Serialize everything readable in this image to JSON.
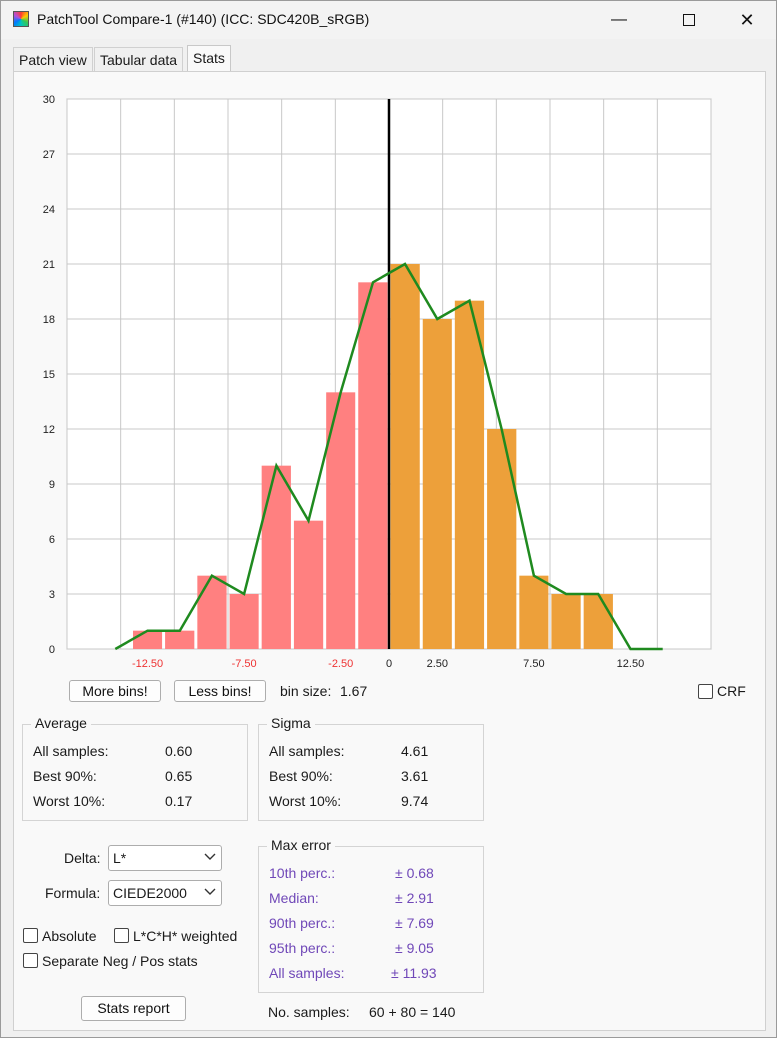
{
  "window": {
    "title": "PatchTool Compare-1 (#140) (ICC: SDC420B_sRGB)",
    "minimize_glyph": "—",
    "close_glyph": "✕"
  },
  "tabs": [
    {
      "label": "Patch view",
      "active": false
    },
    {
      "label": "Tabular data",
      "active": false
    },
    {
      "label": "Stats",
      "active": true
    }
  ],
  "chart_data": {
    "type": "bar",
    "x_tick_labels": [
      {
        "label": "-12.50",
        "x": -12.5,
        "color": "#ee3333"
      },
      {
        "label": "-7.50",
        "x": -7.5,
        "color": "#ee3333"
      },
      {
        "label": "-2.50",
        "x": -2.5,
        "color": "#ee3333"
      },
      {
        "label": "0",
        "x": 0,
        "color": "#222222"
      },
      {
        "label": "2.50",
        "x": 2.5,
        "color": "#222222"
      },
      {
        "label": "7.50",
        "x": 7.5,
        "color": "#222222"
      },
      {
        "label": "12.50",
        "x": 12.5,
        "color": "#222222"
      }
    ],
    "y_ticks": [
      0,
      3,
      6,
      9,
      12,
      15,
      18,
      21,
      24,
      27,
      30
    ],
    "xlim": [
      -16.67,
      16.67
    ],
    "ylim": [
      0,
      30
    ],
    "grid": true,
    "bin_size": 1.67,
    "negative_bars": [
      {
        "x0": -15.0,
        "x1": -13.33,
        "value": 0
      },
      {
        "x0": -13.33,
        "x1": -11.67,
        "value": 1
      },
      {
        "x0": -11.67,
        "x1": -10.0,
        "value": 1
      },
      {
        "x0": -10.0,
        "x1": -8.33,
        "value": 4
      },
      {
        "x0": -8.33,
        "x1": -6.67,
        "value": 3
      },
      {
        "x0": -6.67,
        "x1": -5.0,
        "value": 10
      },
      {
        "x0": -5.0,
        "x1": -3.33,
        "value": 7
      },
      {
        "x0": -3.33,
        "x1": -1.67,
        "value": 14
      },
      {
        "x0": -1.67,
        "x1": 0.0,
        "value": 20
      }
    ],
    "positive_bars": [
      {
        "x0": 0.0,
        "x1": 1.67,
        "value": 21
      },
      {
        "x0": 1.67,
        "x1": 3.33,
        "value": 18
      },
      {
        "x0": 3.33,
        "x1": 5.0,
        "value": 19
      },
      {
        "x0": 5.0,
        "x1": 6.67,
        "value": 12
      },
      {
        "x0": 6.67,
        "x1": 8.33,
        "value": 4
      },
      {
        "x0": 8.33,
        "x1": 10.0,
        "value": 3
      },
      {
        "x0": 10.0,
        "x1": 11.67,
        "value": 3
      },
      {
        "x0": 11.67,
        "x1": 13.33,
        "value": 0
      },
      {
        "x0": 13.33,
        "x1": 15.0,
        "value": 0
      }
    ],
    "line": {
      "x": [
        -14.17,
        -12.5,
        -10.83,
        -9.17,
        -7.5,
        -5.83,
        -4.17,
        -2.5,
        -0.83,
        0.83,
        2.5,
        4.17,
        5.83,
        7.5,
        9.17,
        10.83,
        12.5,
        14.17
      ],
      "y": [
        0,
        1,
        1,
        4,
        3,
        10,
        7,
        14,
        20,
        21,
        18,
        19,
        12,
        4,
        3,
        3,
        0,
        0
      ]
    },
    "colors": {
      "negative": "#ff8080",
      "positive": "#eda03a",
      "line": "#1f8a1f",
      "zero_line": "#000000",
      "grid": "#c8c8c8"
    }
  },
  "controls": {
    "more_bins_label": "More bins!",
    "less_bins_label": "Less bins!",
    "bin_size_label": "bin size:",
    "bin_size_value": "1.67",
    "crf_label": "CRF",
    "crf_checked": false
  },
  "average": {
    "title": "Average",
    "rows": [
      {
        "label": "All samples:",
        "value": "0.60"
      },
      {
        "label": "Best 90%:",
        "value": "0.65"
      },
      {
        "label": "Worst 10%:",
        "value": "0.17"
      }
    ]
  },
  "sigma": {
    "title": "Sigma",
    "rows": [
      {
        "label": "All samples:",
        "value": "4.61"
      },
      {
        "label": "Best 90%:",
        "value": "3.61"
      },
      {
        "label": "Worst 10%:",
        "value": "9.74"
      }
    ]
  },
  "settings": {
    "delta_label": "Delta:",
    "delta_value": "L*",
    "formula_label": "Formula:",
    "formula_value": "CIEDE2000",
    "absolute_label": "Absolute",
    "absolute_checked": false,
    "weighted_label": "L*C*H* weighted",
    "weighted_checked": false,
    "separate_label": "Separate Neg / Pos stats",
    "separate_checked": false,
    "stats_report_label": "Stats report"
  },
  "max_error": {
    "title": "Max error",
    "rows": [
      {
        "label": "10th perc.:",
        "value": "± 0.68"
      },
      {
        "label": "Median:",
        "value": "± 2.91"
      },
      {
        "label": "90th perc.:",
        "value": "± 7.69"
      },
      {
        "label": "95th perc.:",
        "value": "± 9.05"
      },
      {
        "label": "All samples:",
        "value": "± 11.93"
      }
    ]
  },
  "samples": {
    "label": "No. samples:",
    "value": "60 + 80 = 140"
  }
}
